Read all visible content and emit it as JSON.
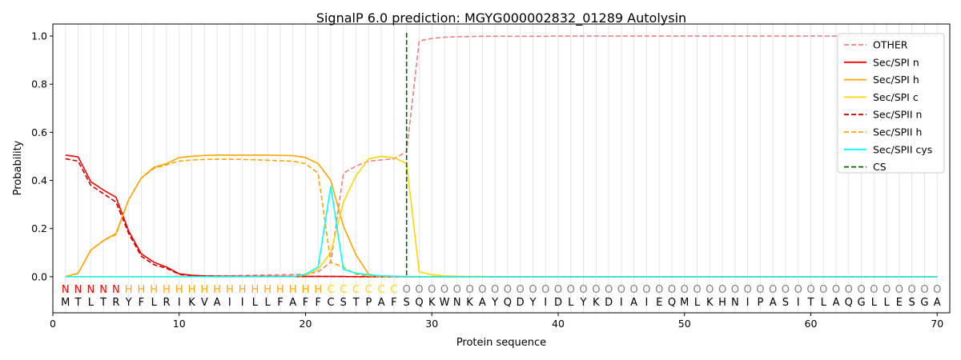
{
  "chart_data": {
    "type": "line",
    "title": "SignalP 6.0 prediction: MGYG000002832_01289 Autolysin",
    "xlabel": "Protein sequence",
    "ylabel": "Probability",
    "xlim": [
      0,
      71
    ],
    "ylim": [
      -0.15,
      1.05
    ],
    "xticks": [
      0,
      10,
      20,
      30,
      40,
      50,
      60,
      70
    ],
    "yticks": [
      0.0,
      0.2,
      0.4,
      0.6,
      0.8,
      1.0
    ],
    "xtick_labels": [
      "0",
      "10",
      "20",
      "30",
      "40",
      "50",
      "60",
      "70"
    ],
    "ytick_labels": [
      "0.0",
      "0.2",
      "0.4",
      "0.6",
      "0.8",
      "1.0"
    ],
    "grid": "vertical lines at each residue",
    "legend_position": "top-right",
    "sequence": "MTLTRYFLRIKVAIILLFAFFCSTPAFSQKWNKAYQDYIDLYKDIAIEQMLKHNIPASITLAQGLLESGA",
    "labels": "NNNNNHHHHHHHHHHHHHHHHCCCCCCOOOOOOOOOOOOOOOOOOOOOOOOOOOOOOOOOOOOOOOOOOO",
    "label_colors": {
      "N": "#ff0000",
      "H": "#ffa500",
      "C": "#ffd700",
      "O": "#808080"
    },
    "cleavage_site": 28,
    "series": [
      {
        "name": "OTHER",
        "color": "#f08080",
        "dash": "dashed",
        "values": [
          0.0,
          0.0,
          0.0,
          0.0,
          0.0,
          0.0,
          0.0,
          0.0,
          0.0,
          0.002,
          0.003,
          0.003,
          0.004,
          0.004,
          0.005,
          0.006,
          0.007,
          0.008,
          0.009,
          0.01,
          0.02,
          0.06,
          0.43,
          0.46,
          0.48,
          0.485,
          0.49,
          0.52,
          0.98,
          0.99,
          0.995,
          0.997,
          0.998,
          0.999,
          0.999,
          0.999,
          0.999,
          0.999,
          0.999,
          1.0,
          1.0,
          1.0,
          1.0,
          1.0,
          1.0,
          1.0,
          1.0,
          1.0,
          1.0,
          1.0,
          1.0,
          1.0,
          1.0,
          1.0,
          1.0,
          1.0,
          1.0,
          1.0,
          1.0,
          1.0,
          1.0,
          1.0,
          1.0,
          1.0,
          1.0,
          1.0,
          1.0,
          1.0,
          1.0,
          1.0
        ]
      },
      {
        "name": "Sec/SPI n",
        "color": "#ff0000",
        "dash": "solid",
        "values": [
          0.505,
          0.498,
          0.395,
          0.36,
          0.33,
          0.19,
          0.095,
          0.06,
          0.04,
          0.012,
          0.006,
          0.003,
          0.002,
          0.002,
          0.001,
          0.001,
          0.001,
          0.001,
          0.001,
          0.001,
          0.001,
          0.001,
          0.001,
          0.0,
          0.0,
          0.0,
          0.0,
          0.0,
          0.0,
          0.0,
          0.0,
          0.0,
          0.0,
          0.0,
          0.0,
          0.0,
          0.0,
          0.0,
          0.0,
          0.0,
          0.0,
          0.0,
          0.0,
          0.0,
          0.0,
          0.0,
          0.0,
          0.0,
          0.0,
          0.0,
          0.0,
          0.0,
          0.0,
          0.0,
          0.0,
          0.0,
          0.0,
          0.0,
          0.0,
          0.0,
          0.0,
          0.0,
          0.0,
          0.0,
          0.0,
          0.0,
          0.0,
          0.0,
          0.0,
          0.0
        ]
      },
      {
        "name": "Sec/SPI h",
        "color": "#ffa500",
        "dash": "solid",
        "values": [
          0.0,
          0.015,
          0.11,
          0.15,
          0.18,
          0.32,
          0.41,
          0.455,
          0.47,
          0.495,
          0.5,
          0.504,
          0.505,
          0.505,
          0.505,
          0.505,
          0.505,
          0.504,
          0.503,
          0.495,
          0.47,
          0.4,
          0.21,
          0.09,
          0.01,
          0.002,
          0.001,
          0.0,
          0.0,
          0.0,
          0.0,
          0.0,
          0.0,
          0.0,
          0.0,
          0.0,
          0.0,
          0.0,
          0.0,
          0.0,
          0.0,
          0.0,
          0.0,
          0.0,
          0.0,
          0.0,
          0.0,
          0.0,
          0.0,
          0.0,
          0.0,
          0.0,
          0.0,
          0.0,
          0.0,
          0.0,
          0.0,
          0.0,
          0.0,
          0.0,
          0.0,
          0.0,
          0.0,
          0.0,
          0.0,
          0.0,
          0.0,
          0.0,
          0.0,
          0.0
        ]
      },
      {
        "name": "Sec/SPI c",
        "color": "#ffd700",
        "dash": "solid",
        "values": [
          0.0,
          0.0,
          0.0,
          0.0,
          0.0,
          0.0,
          0.0,
          0.0,
          0.0,
          0.0,
          0.0,
          0.0,
          0.0,
          0.0,
          0.0,
          0.0,
          0.0,
          0.0,
          0.0,
          0.005,
          0.03,
          0.1,
          0.31,
          0.42,
          0.49,
          0.5,
          0.495,
          0.47,
          0.02,
          0.008,
          0.003,
          0.002,
          0.001,
          0.001,
          0.0,
          0.0,
          0.0,
          0.0,
          0.0,
          0.0,
          0.0,
          0.0,
          0.0,
          0.0,
          0.0,
          0.0,
          0.0,
          0.0,
          0.0,
          0.0,
          0.0,
          0.0,
          0.0,
          0.0,
          0.0,
          0.0,
          0.0,
          0.0,
          0.0,
          0.0,
          0.0,
          0.0,
          0.0,
          0.0,
          0.0,
          0.0,
          0.0,
          0.0,
          0.0,
          0.0
        ]
      },
      {
        "name": "Sec/SPII n",
        "color": "#cc0000",
        "dash": "dashed",
        "values": [
          0.49,
          0.48,
          0.38,
          0.345,
          0.31,
          0.18,
          0.085,
          0.05,
          0.035,
          0.01,
          0.005,
          0.003,
          0.002,
          0.001,
          0.001,
          0.001,
          0.001,
          0.001,
          0.001,
          0.001,
          0.001,
          0.001,
          0.0,
          0.0,
          0.0,
          0.0,
          0.0,
          0.0,
          0.0,
          0.0,
          0.0,
          0.0,
          0.0,
          0.0,
          0.0,
          0.0,
          0.0,
          0.0,
          0.0,
          0.0,
          0.0,
          0.0,
          0.0,
          0.0,
          0.0,
          0.0,
          0.0,
          0.0,
          0.0,
          0.0,
          0.0,
          0.0,
          0.0,
          0.0,
          0.0,
          0.0,
          0.0,
          0.0,
          0.0,
          0.0,
          0.0,
          0.0,
          0.0,
          0.0,
          0.0,
          0.0,
          0.0,
          0.0,
          0.0,
          0.0
        ]
      },
      {
        "name": "Sec/SPII h",
        "color": "#ffa500",
        "dash": "dashed",
        "values": [
          0.0,
          0.015,
          0.11,
          0.15,
          0.175,
          0.32,
          0.41,
          0.45,
          0.465,
          0.48,
          0.485,
          0.487,
          0.488,
          0.488,
          0.487,
          0.486,
          0.484,
          0.482,
          0.48,
          0.47,
          0.43,
          0.06,
          0.04,
          0.01,
          0.003,
          0.001,
          0.0,
          0.0,
          0.0,
          0.0,
          0.0,
          0.0,
          0.0,
          0.0,
          0.0,
          0.0,
          0.0,
          0.0,
          0.0,
          0.0,
          0.0,
          0.0,
          0.0,
          0.0,
          0.0,
          0.0,
          0.0,
          0.0,
          0.0,
          0.0,
          0.0,
          0.0,
          0.0,
          0.0,
          0.0,
          0.0,
          0.0,
          0.0,
          0.0,
          0.0,
          0.0,
          0.0,
          0.0,
          0.0,
          0.0,
          0.0,
          0.0,
          0.0,
          0.0,
          0.0
        ]
      },
      {
        "name": "Sec/SPII cys",
        "color": "#00ffff",
        "dash": "solid",
        "values": [
          0.0,
          0.0,
          0.0,
          0.0,
          0.0,
          0.0,
          0.0,
          0.0,
          0.0,
          0.0,
          0.0,
          0.0,
          0.0,
          0.0,
          0.0,
          0.0,
          0.0,
          0.0,
          0.0,
          0.01,
          0.04,
          0.375,
          0.03,
          0.015,
          0.008,
          0.004,
          0.002,
          0.001,
          0.0,
          0.0,
          0.0,
          0.0,
          0.0,
          0.0,
          0.0,
          0.0,
          0.0,
          0.0,
          0.0,
          0.0,
          0.0,
          0.0,
          0.0,
          0.0,
          0.0,
          0.0,
          0.0,
          0.0,
          0.0,
          0.0,
          0.0,
          0.0,
          0.0,
          0.0,
          0.0,
          0.0,
          0.0,
          0.0,
          0.0,
          0.0,
          0.0,
          0.0,
          0.0,
          0.0,
          0.0,
          0.0,
          0.0,
          0.0,
          0.0,
          0.0
        ]
      }
    ],
    "cs_series": {
      "name": "CS",
      "color": "#006400",
      "dash": "dashed"
    }
  }
}
